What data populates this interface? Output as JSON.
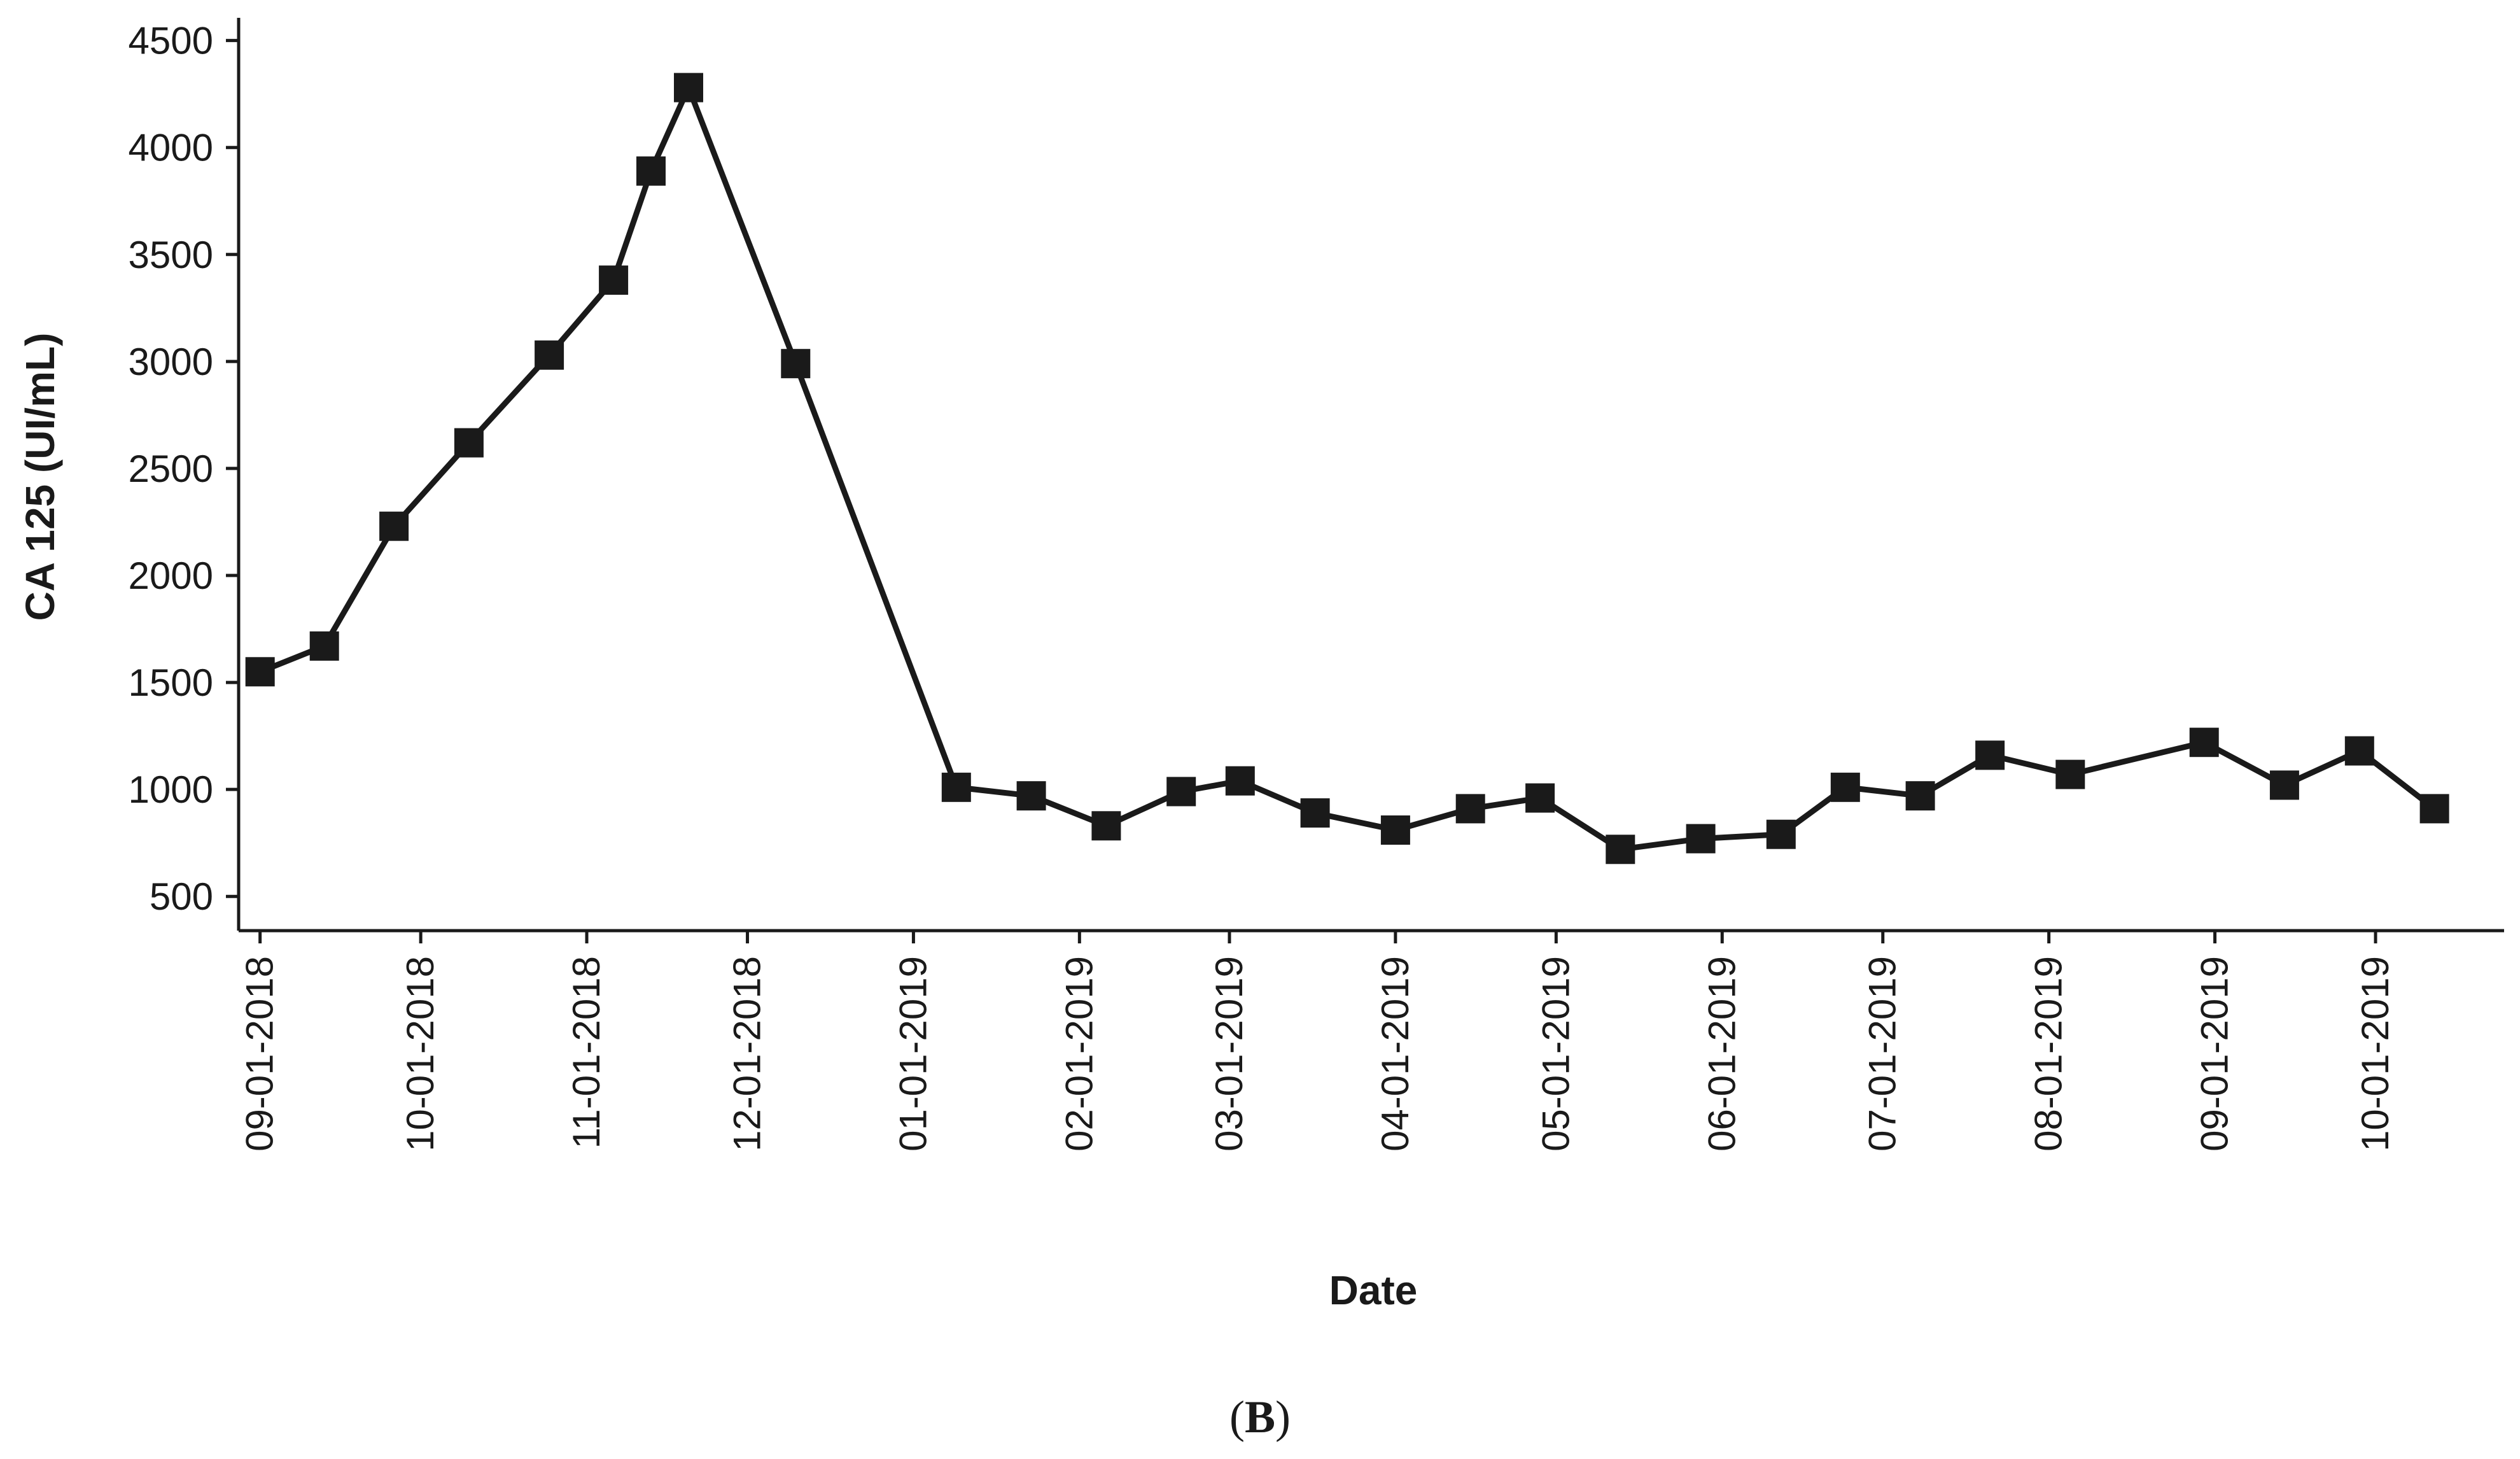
{
  "chart_data": {
    "type": "line",
    "xlabel": "Date",
    "ylabel": "CA 125 (UI/mL)",
    "panel_label": {
      "open": "(",
      "letter": "B",
      "close": ")"
    },
    "ylim": [
      340,
      4600
    ],
    "y_ticks": [
      500,
      1000,
      1500,
      2000,
      2500,
      3000,
      3500,
      4000,
      4500
    ],
    "x_range": [
      "2018-08-28",
      "2019-10-25"
    ],
    "x_ticks": [
      {
        "date": "2018-09-01",
        "label": "09-01-2018"
      },
      {
        "date": "2018-10-01",
        "label": "10-01-2018"
      },
      {
        "date": "2018-11-01",
        "label": "11-01-2018"
      },
      {
        "date": "2018-12-01",
        "label": "12-01-2018"
      },
      {
        "date": "2019-01-01",
        "label": "01-01-2019"
      },
      {
        "date": "2019-02-01",
        "label": "02-01-2019"
      },
      {
        "date": "2019-03-01",
        "label": "03-01-2019"
      },
      {
        "date": "2019-04-01",
        "label": "04-01-2019"
      },
      {
        "date": "2019-05-01",
        "label": "05-01-2019"
      },
      {
        "date": "2019-06-01",
        "label": "06-01-2019"
      },
      {
        "date": "2019-07-01",
        "label": "07-01-2019"
      },
      {
        "date": "2019-08-01",
        "label": "08-01-2019"
      },
      {
        "date": "2019-09-01",
        "label": "09-01-2019"
      },
      {
        "date": "2019-10-01",
        "label": "10-01-2019"
      }
    ],
    "series": [
      {
        "marker": "square",
        "color": "#1a1a1a",
        "points": [
          {
            "x": "2018-09-01",
            "y": 1550
          },
          {
            "x": "2018-09-13",
            "y": 1670
          },
          {
            "x": "2018-09-26",
            "y": 2230
          },
          {
            "x": "2018-10-10",
            "y": 2620
          },
          {
            "x": "2018-10-25",
            "y": 3030
          },
          {
            "x": "2018-11-06",
            "y": 3380
          },
          {
            "x": "2018-11-13",
            "y": 3890
          },
          {
            "x": "2018-11-20",
            "y": 4280
          },
          {
            "x": "2018-12-10",
            "y": 2990
          },
          {
            "x": "2019-01-09",
            "y": 1010
          },
          {
            "x": "2019-01-23",
            "y": 970
          },
          {
            "x": "2019-02-06",
            "y": 830
          },
          {
            "x": "2019-02-20",
            "y": 990
          },
          {
            "x": "2019-03-03",
            "y": 1040
          },
          {
            "x": "2019-03-17",
            "y": 890
          },
          {
            "x": "2019-04-01",
            "y": 810
          },
          {
            "x": "2019-04-15",
            "y": 910
          },
          {
            "x": "2019-04-28",
            "y": 960
          },
          {
            "x": "2019-05-13",
            "y": 720
          },
          {
            "x": "2019-05-28",
            "y": 770
          },
          {
            "x": "2019-06-12",
            "y": 790
          },
          {
            "x": "2019-06-24",
            "y": 1010
          },
          {
            "x": "2019-07-08",
            "y": 970
          },
          {
            "x": "2019-07-21",
            "y": 1160
          },
          {
            "x": "2019-08-05",
            "y": 1070
          },
          {
            "x": "2019-08-30",
            "y": 1220
          },
          {
            "x": "2019-09-14",
            "y": 1020
          },
          {
            "x": "2019-09-28",
            "y": 1180
          },
          {
            "x": "2019-10-12",
            "y": 910
          }
        ]
      }
    ],
    "grid": false,
    "legend": "none"
  }
}
